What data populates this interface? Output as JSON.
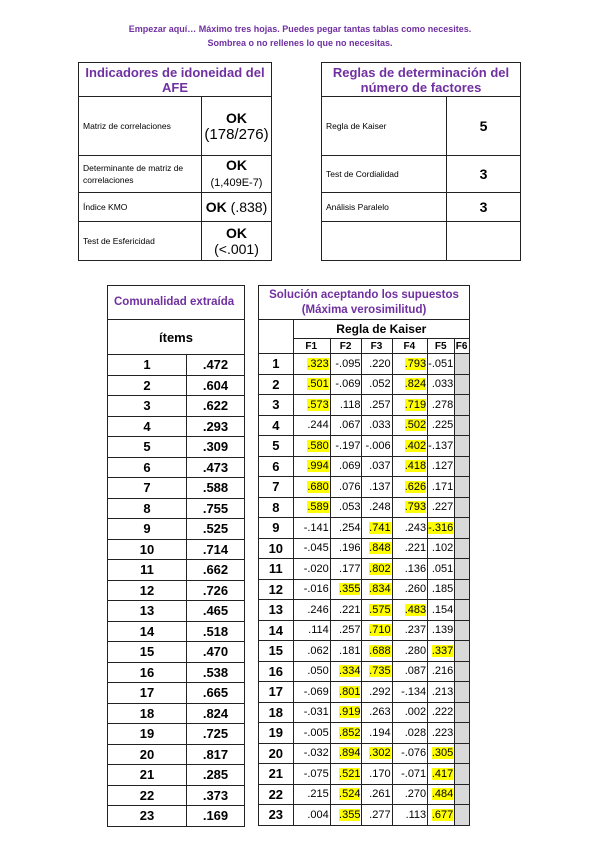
{
  "intro": {
    "line1": "Empezar aquí… Máximo tres hojas. Puedes pegar tantas tablas como necesites.",
    "line2": "Sombrea o no rellenes lo que no necesitas."
  },
  "indicators": {
    "title": "Indicadores de idoneidad del AFE",
    "rows": [
      {
        "label": "Matriz de correlaciones",
        "ok": "OK",
        "detail": "(178/276)"
      },
      {
        "label": "Determinante de matriz de correlaciones",
        "ok": "OK",
        "detail": "(1,409E-7)"
      },
      {
        "label": "Índice KMO",
        "ok": "OK",
        "detail": " (.838)"
      },
      {
        "label": "Test de Esfericidad",
        "ok": "OK",
        "detail": "(<.001)"
      }
    ]
  },
  "rules": {
    "title": "Reglas de determinación del número de factores",
    "rows": [
      {
        "label": "Regla de Kaiser",
        "value": "5"
      },
      {
        "label": "Test de Cordialidad",
        "value": "3"
      },
      {
        "label": "Análisis Paralelo",
        "value": "3"
      },
      {
        "label": "",
        "value": ""
      }
    ]
  },
  "communality": {
    "title": "Comunalidad extraída",
    "items_header": "ítems",
    "values": [
      ".472",
      ".604",
      ".622",
      ".293",
      ".309",
      ".473",
      ".588",
      ".755",
      ".525",
      ".714",
      ".662",
      ".726",
      ".465",
      ".518",
      ".470",
      ".538",
      ".665",
      ".824",
      ".725",
      ".817",
      ".285",
      ".373",
      ".169"
    ]
  },
  "solution": {
    "title": "Solución aceptando los supuestos (Máxima verosimilitud)",
    "rule": "Regla de Kaiser",
    "factors": [
      "F1",
      "F2",
      "F3",
      "F4",
      "F5",
      "F6"
    ],
    "highlight_color": "#ffff00",
    "loadings": [
      [
        ".323",
        "-.095",
        ".220",
        ".793",
        "-.051"
      ],
      [
        ".501",
        "-.069",
        ".052",
        ".824",
        ".033"
      ],
      [
        ".573",
        ".118",
        ".257",
        ".719",
        ".278"
      ],
      [
        ".244",
        ".067",
        ".033",
        ".502",
        ".225"
      ],
      [
        ".580",
        "-.197",
        "-.006",
        ".402",
        "-.137"
      ],
      [
        ".994",
        ".069",
        ".037",
        ".418",
        ".127"
      ],
      [
        ".680",
        ".076",
        ".137",
        ".626",
        ".171"
      ],
      [
        ".589",
        ".053",
        ".248",
        ".793",
        ".227"
      ],
      [
        "-.141",
        ".254",
        ".741",
        ".243",
        "-.316"
      ],
      [
        "-.045",
        ".196",
        ".848",
        ".221",
        ".102"
      ],
      [
        "-.020",
        ".177",
        ".802",
        ".136",
        ".051"
      ],
      [
        "-.016",
        ".355",
        ".834",
        ".260",
        ".185"
      ],
      [
        ".246",
        ".221",
        ".575",
        ".483",
        ".154"
      ],
      [
        ".114",
        ".257",
        ".710",
        ".237",
        ".139"
      ],
      [
        ".062",
        ".181",
        ".688",
        ".280",
        ".337"
      ],
      [
        ".050",
        ".334",
        ".735",
        ".087",
        ".216"
      ],
      [
        "-.069",
        ".801",
        ".292",
        "-.134",
        ".213"
      ],
      [
        "-.031",
        ".919",
        ".263",
        ".002",
        ".222"
      ],
      [
        "-.005",
        ".852",
        ".194",
        ".028",
        ".223"
      ],
      [
        "-.032",
        ".894",
        ".302",
        "-.076",
        ".305"
      ],
      [
        "-.075",
        ".521",
        ".170",
        "-.071",
        ".417"
      ],
      [
        ".215",
        ".524",
        ".261",
        ".270",
        ".484"
      ],
      [
        ".004",
        ".355",
        ".277",
        ".113",
        ".677"
      ]
    ],
    "highlighted": [
      [
        0,
        3
      ],
      [
        0,
        3
      ],
      [
        0,
        3
      ],
      [
        3
      ],
      [
        0,
        3
      ],
      [
        0,
        3
      ],
      [
        0,
        3
      ],
      [
        0,
        3
      ],
      [
        2,
        4
      ],
      [
        2
      ],
      [
        2
      ],
      [
        1,
        2
      ],
      [
        2,
        3
      ],
      [
        2
      ],
      [
        2,
        4
      ],
      [
        1,
        2
      ],
      [
        1
      ],
      [
        1
      ],
      [
        1
      ],
      [
        1,
        2,
        4
      ],
      [
        1,
        4
      ],
      [
        1,
        4
      ],
      [
        1,
        4
      ]
    ]
  }
}
